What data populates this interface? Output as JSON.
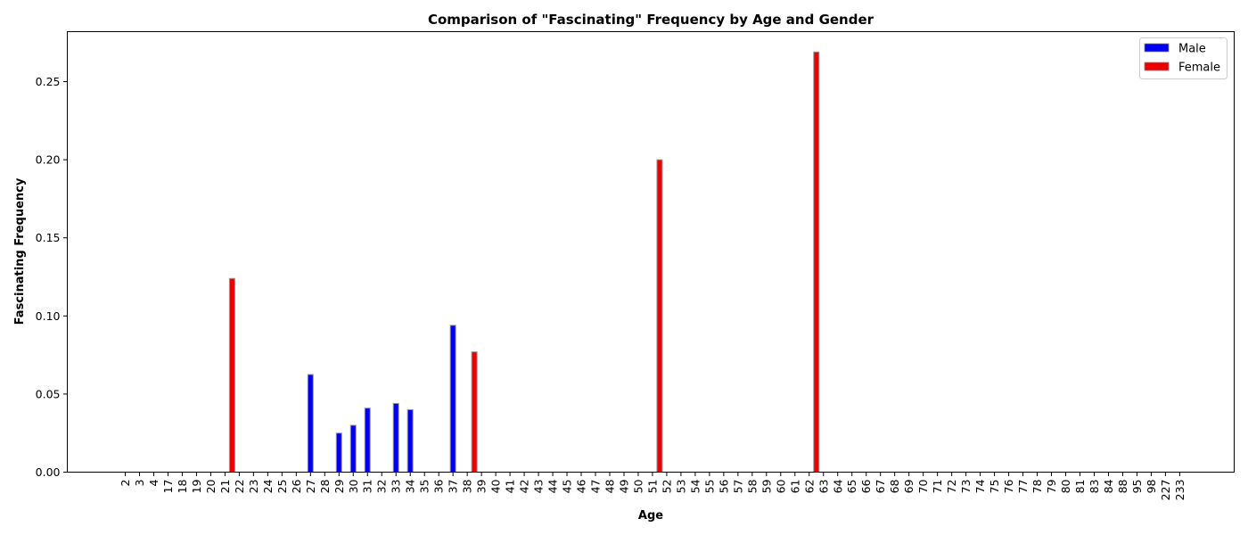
{
  "chart_data": {
    "type": "bar",
    "title": "Comparison of \"Fascinating\" Frequency by Age and Gender",
    "xlabel": "Age",
    "ylabel": "Fascinating Frequency",
    "ylim": [
      0,
      0.282
    ],
    "yticks": [
      0.0,
      0.05,
      0.1,
      0.15,
      0.2,
      0.25
    ],
    "ytick_labels": [
      "0.00",
      "0.05",
      "0.10",
      "0.15",
      "0.20",
      "0.25"
    ],
    "grid": false,
    "legend_position": "top-right",
    "categories": [
      "2",
      "3",
      "4",
      "17",
      "18",
      "19",
      "20",
      "21",
      "22",
      "23",
      "24",
      "25",
      "26",
      "27",
      "28",
      "29",
      "30",
      "31",
      "32",
      "33",
      "34",
      "35",
      "36",
      "37",
      "38",
      "39",
      "40",
      "41",
      "42",
      "43",
      "44",
      "45",
      "46",
      "47",
      "48",
      "49",
      "50",
      "51",
      "52",
      "53",
      "54",
      "55",
      "56",
      "57",
      "58",
      "59",
      "60",
      "61",
      "62",
      "63",
      "64",
      "65",
      "66",
      "67",
      "68",
      "69",
      "70",
      "71",
      "72",
      "73",
      "74",
      "75",
      "76",
      "77",
      "78",
      "79",
      "80",
      "81",
      "83",
      "84",
      "88",
      "95",
      "98",
      "227",
      "233"
    ],
    "series": [
      {
        "name": "Male",
        "color": "#0000ee",
        "values": [
          0,
          0,
          0,
          0,
          0,
          0,
          0,
          0,
          0,
          0,
          0,
          0,
          0,
          0.0625,
          0,
          0.025,
          0.03,
          0.041,
          0,
          0.044,
          0.04,
          0,
          0,
          0.094,
          0,
          0,
          0,
          0,
          0,
          0,
          0,
          0,
          0,
          0,
          0,
          0,
          0,
          0,
          0,
          0,
          0,
          0,
          0,
          0,
          0,
          0,
          0,
          0,
          0,
          0,
          0,
          0,
          0,
          0,
          0,
          0,
          0,
          0,
          0,
          0,
          0,
          0,
          0,
          0,
          0,
          0,
          0,
          0,
          0,
          0,
          0,
          0,
          0,
          0,
          0
        ]
      },
      {
        "name": "Female",
        "color": "#ee0000",
        "values": [
          0,
          0,
          0,
          0,
          0,
          0,
          0,
          0.124,
          0,
          0,
          0,
          0,
          0,
          0,
          0,
          0,
          0,
          0,
          0,
          0,
          0,
          0,
          0,
          0,
          0.077,
          0,
          0,
          0,
          0,
          0,
          0,
          0,
          0,
          0,
          0,
          0,
          0,
          0.2,
          0,
          0,
          0,
          0,
          0,
          0,
          0,
          0,
          0,
          0,
          0.269,
          0,
          0,
          0,
          0,
          0,
          0,
          0,
          0,
          0,
          0,
          0,
          0,
          0,
          0,
          0,
          0,
          0,
          0,
          0,
          0,
          0,
          0,
          0,
          0,
          0,
          0
        ]
      }
    ]
  }
}
